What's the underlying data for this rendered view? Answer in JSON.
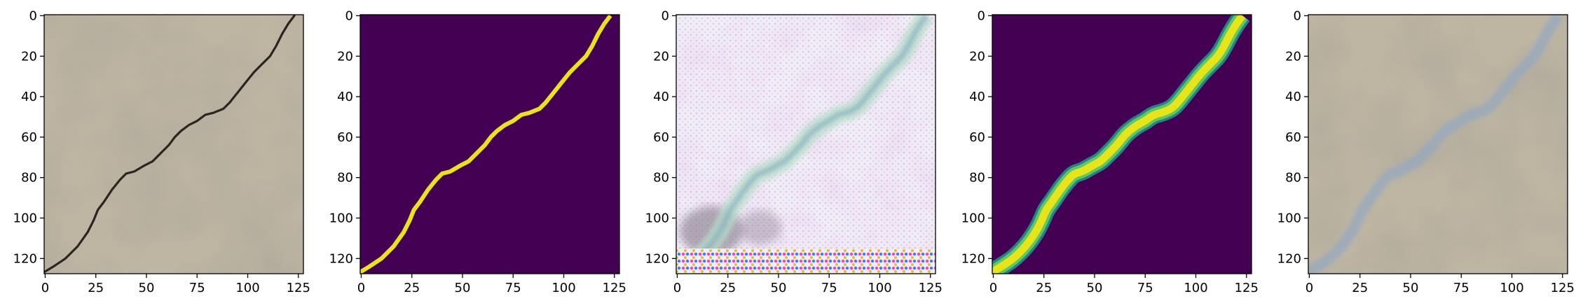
{
  "figure": {
    "panels": [
      {
        "name": "crack-photo",
        "description_type": "image"
      },
      {
        "name": "ground-truth-mask",
        "description_type": "image"
      },
      {
        "name": "generated-image",
        "description_type": "image"
      },
      {
        "name": "predicted-mask",
        "description_type": "image"
      },
      {
        "name": "overlay",
        "description_type": "image"
      }
    ],
    "xticks": [
      "0",
      "25",
      "50",
      "75",
      "100",
      "125"
    ],
    "yticks": [
      "0",
      "20",
      "40",
      "60",
      "80",
      "100",
      "120"
    ],
    "xtick_values": [
      0,
      25,
      50,
      75,
      100,
      125
    ],
    "ytick_values": [
      0,
      20,
      40,
      60,
      80,
      100,
      120
    ],
    "image_extent": [
      128,
      128
    ],
    "colors": {
      "concrete": "#bfb59e",
      "crack": "#2a2520",
      "mask_bg": "#440154",
      "mask_fg": "#e7e419",
      "mask_mid": "#21918c"
    }
  }
}
